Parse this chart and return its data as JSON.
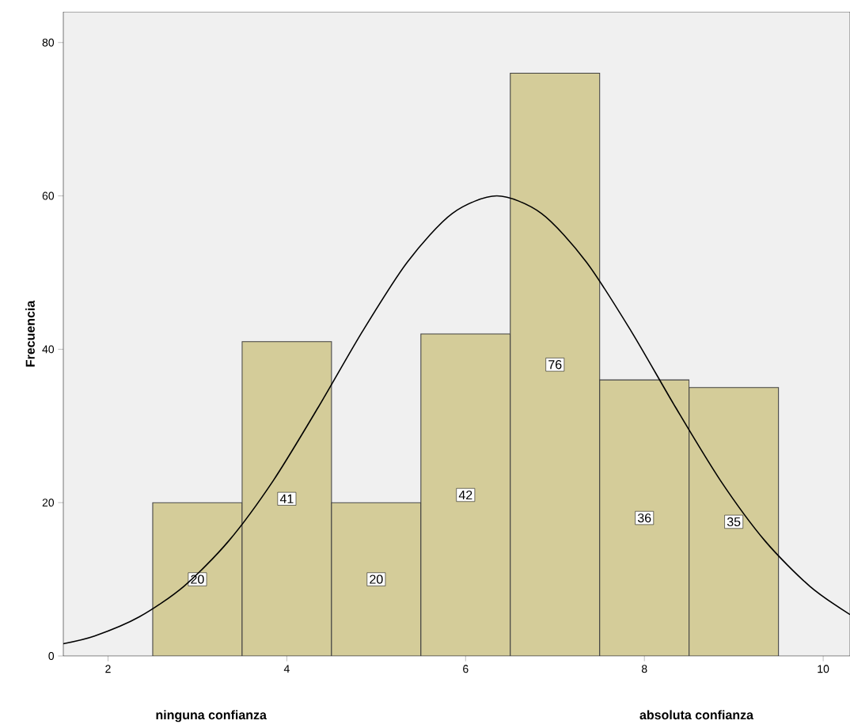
{
  "chart_data": {
    "type": "histogram",
    "ylabel": "Frecuencia",
    "bins": [
      2.5,
      3.5,
      4.5,
      5.5,
      6.5,
      7.5,
      8.5,
      9.5
    ],
    "values": [
      20,
      41,
      20,
      42,
      76,
      36,
      35
    ],
    "color": "#d4cc99",
    "value_labels": [
      "20",
      "41",
      "20",
      "42",
      "76",
      "36",
      "35"
    ],
    "series": [
      {
        "type": "line",
        "color": "#000000",
        "x": [
          1.5,
          1.85,
          2.35,
          2.85,
          3.35,
          3.85,
          4.35,
          4.85,
          5.35,
          5.85,
          6.35,
          6.85,
          7.35,
          7.85,
          8.35,
          8.85,
          9.35,
          9.85,
          10.3
        ],
        "values": [
          1.6,
          2.6,
          5.1,
          9.1,
          15.0,
          22.9,
          32.4,
          42.4,
          51.4,
          57.7,
          60,
          57.7,
          51.4,
          42.4,
          32.4,
          22.9,
          15.0,
          9.1,
          5.4
        ]
      }
    ],
    "xlim": [
      1.5,
      10.3
    ],
    "ylim": [
      0,
      84
    ],
    "xticks": [
      2,
      4,
      6,
      8,
      10
    ],
    "yticks": [
      0,
      20,
      40,
      60,
      80
    ],
    "annotations": [
      "ninguna confianza",
      "absoluta confianza"
    ]
  }
}
